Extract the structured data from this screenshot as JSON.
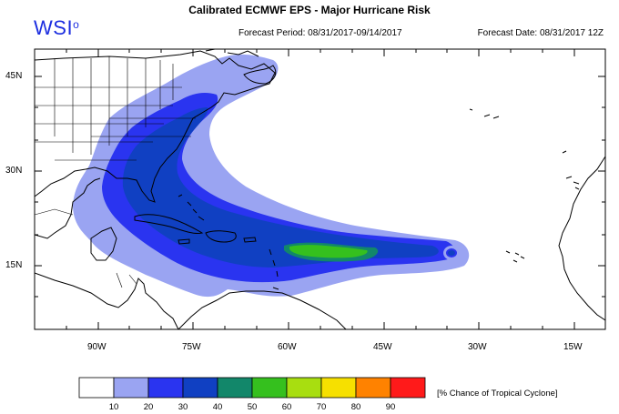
{
  "header": {
    "title": "Calibrated ECMWF EPS - Major Hurricane Risk",
    "logo": "WSI",
    "logo_degree": "o",
    "forecast_period": "Forecast Period: 08/31/2017-09/14/2017",
    "forecast_date": "Forecast Date: 08/31/2017 12Z"
  },
  "map": {
    "region": "North Atlantic Ocean",
    "lat_labels": [
      "45N",
      "30N",
      "15N"
    ],
    "lon_labels": [
      "90W",
      "75W",
      "60W",
      "45W",
      "30W",
      "15W"
    ]
  },
  "legend": {
    "unit_label": "[% Chance of Tropical Cyclone]",
    "levels": [
      "10",
      "20",
      "30",
      "40",
      "50",
      "60",
      "70",
      "80",
      "90"
    ],
    "colors": [
      "#ffffff",
      "#9aa4f2",
      "#2a34f0",
      "#1040c2",
      "#12876a",
      "#35c01e",
      "#a8de10",
      "#f6e000",
      "#ff8200",
      "#ff1a1a"
    ]
  }
}
